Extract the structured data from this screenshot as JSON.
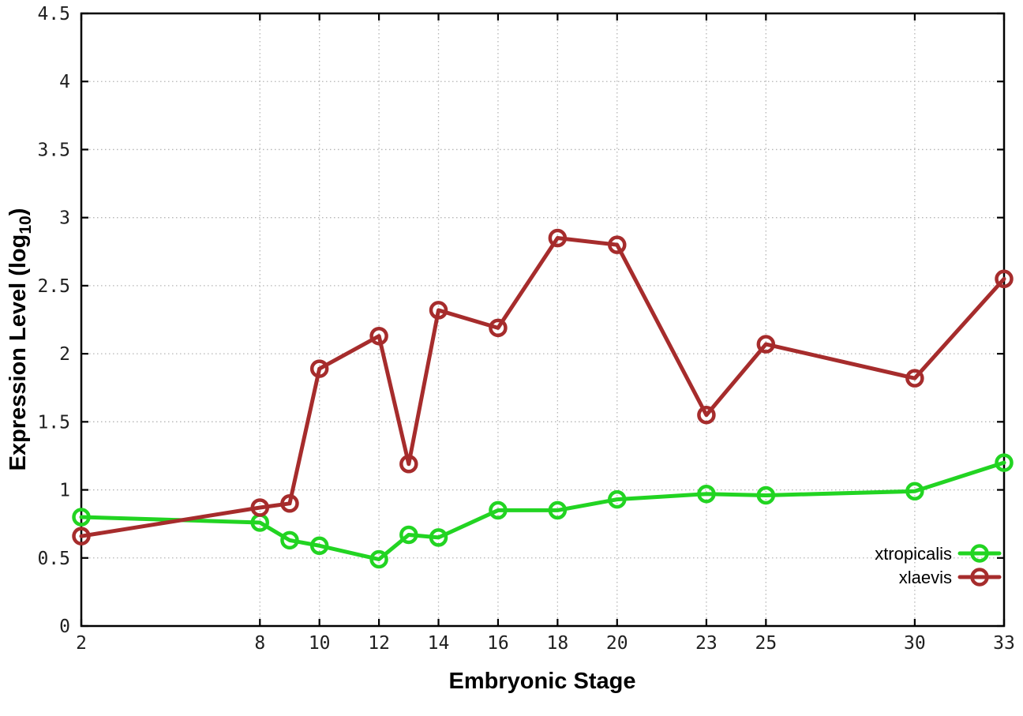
{
  "figure": {
    "background": "#ffffff"
  },
  "chart_data": {
    "type": "line",
    "title": "",
    "xlabel": "Embryonic Stage",
    "ylabel": "Expression Level (log10)",
    "ylabel_parts": {
      "main": "Expression Level (log",
      "sub": "10",
      "close": ")"
    },
    "xlim": [
      2,
      33
    ],
    "ylim": [
      0,
      4.5
    ],
    "grid": true,
    "legend_position": "bottom-right-inside",
    "x": [
      2,
      8,
      9,
      10,
      12,
      13,
      14,
      16,
      18,
      20,
      23,
      25,
      30,
      33
    ],
    "xtick_values": [
      2,
      8,
      10,
      12,
      14,
      16,
      18,
      20,
      23,
      25,
      30,
      33
    ],
    "xtick_labels": [
      "2",
      "8",
      "10",
      "12",
      "14",
      "16",
      "18",
      "20",
      "23",
      "25",
      "30",
      "33"
    ],
    "ytick_values": [
      0,
      0.5,
      1,
      1.5,
      2,
      2.5,
      3,
      3.5,
      4,
      4.5
    ],
    "ytick_labels": [
      "0",
      "0.5",
      "1",
      "1.5",
      "2",
      "2.5",
      "3",
      "3.5",
      "4",
      "4.5"
    ],
    "series": [
      {
        "name": "xtropicalis",
        "color": "#22d422",
        "values": [
          0.8,
          0.76,
          0.63,
          0.59,
          0.49,
          0.67,
          0.65,
          0.85,
          0.85,
          0.93,
          0.97,
          0.96,
          0.99,
          1.2
        ]
      },
      {
        "name": "xlaevis",
        "color": "#a62c2c",
        "values": [
          0.66,
          0.87,
          0.9,
          1.89,
          2.13,
          1.19,
          2.32,
          2.19,
          2.85,
          2.8,
          1.55,
          2.07,
          1.82,
          2.55
        ]
      }
    ],
    "colors": {
      "grid": "#b5b5b5",
      "axis": "#000000",
      "tick_text": "#1f1f1f"
    }
  }
}
